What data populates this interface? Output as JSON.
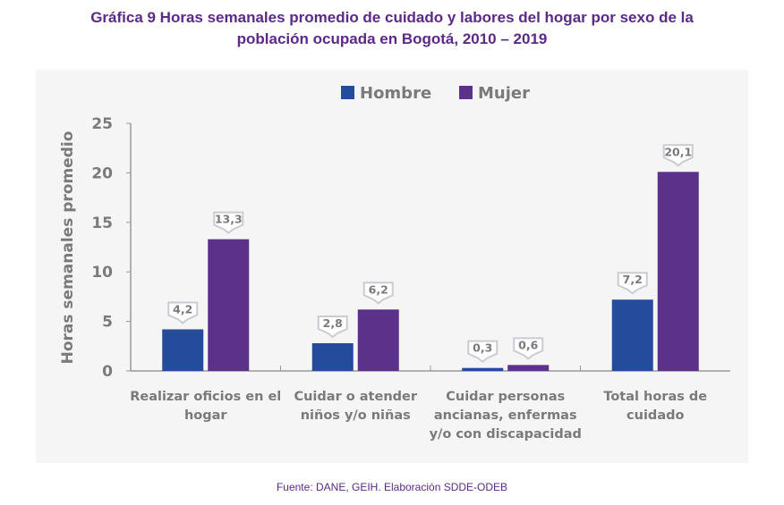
{
  "title_line1": "Gráfica 9 Horas semanales promedio de cuidado y labores del hogar por sexo de la",
  "title_line2": "población ocupada en Bogotá, 2010 – 2019",
  "source": "Fuente: DANE, GEIH. Elaboración SDDE-ODEB",
  "chart_data": {
    "type": "bar",
    "title": "Gráfica 9 Horas semanales promedio de cuidado y labores del hogar por sexo de la población ocupada en Bogotá, 2010 – 2019",
    "ylabel": "Horas semanales promedio",
    "xlabel": "",
    "ylim": [
      0,
      25
    ],
    "yticks": [
      0,
      5,
      10,
      15,
      20,
      25
    ],
    "grid": false,
    "legend_position": "top-center",
    "categories": [
      [
        "Realizar oficios en el",
        "hogar"
      ],
      [
        "Cuidar o atender",
        "niños y/o niñas"
      ],
      [
        "Cuidar personas",
        "ancianas, enfermas",
        "y/o con discapacidad"
      ],
      [
        "Total horas de",
        "cuidado"
      ]
    ],
    "series": [
      {
        "name": "Hombre",
        "color": "#254b9c",
        "values": [
          4.2,
          2.8,
          0.3,
          7.2
        ],
        "labels": [
          "4,2",
          "2,8",
          "0,3",
          "7,2"
        ]
      },
      {
        "name": "Mujer",
        "color": "#5c318a",
        "values": [
          13.3,
          6.2,
          0.6,
          20.1
        ],
        "labels": [
          "13,3",
          "6,2",
          "0,6",
          "20,1"
        ]
      }
    ]
  }
}
